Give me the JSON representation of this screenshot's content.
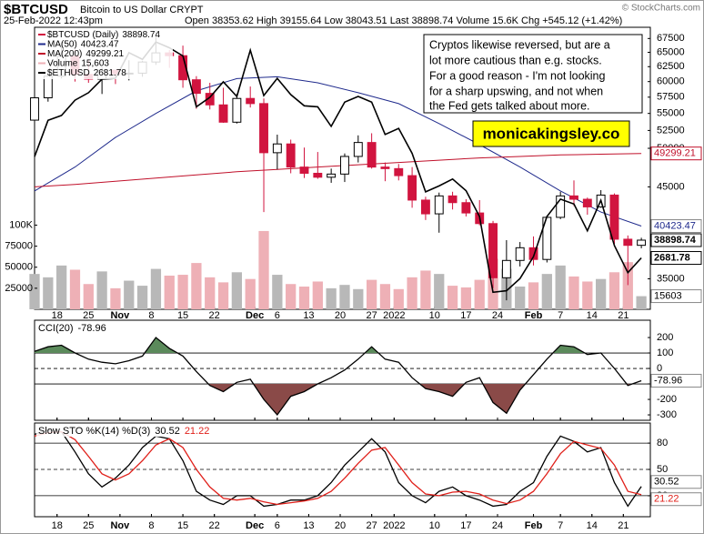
{
  "chart_data": [
    {
      "type": "candlestick",
      "title": "$BTCUSD",
      "subtitle": "Bitcoin to US Dollar  CRYPT",
      "date": "25-Feb-2022 12:43pm",
      "quote": "Open 38353.62  High 39155.64  Low 38043.51  Last 38898.74  Volume 15.6K  Chg +545.12 (+1.42%)",
      "copyright": "© StockCharts.com",
      "name": "$BTCUSD (Daily)",
      "annotation": [
        "Cryptos likewise reversed, but are a",
        "lot more cautious than e.g. stocks.",
        "For a good reason - I'm not looking",
        "for a sharp upswing, and not when",
        "the Fed gets talked about more."
      ],
      "link": "monicakingsley.co",
      "x": [
        0,
        3,
        6,
        9,
        12,
        15,
        18,
        21,
        24,
        27,
        30,
        33,
        36,
        39,
        42,
        45,
        48,
        51,
        54,
        57,
        60,
        63,
        66,
        69,
        72,
        75,
        78,
        81,
        84,
        87,
        90,
        93,
        96,
        99,
        102,
        105,
        108,
        111,
        114,
        117,
        120,
        123,
        126,
        129,
        132,
        135
      ],
      "open": [
        54000,
        57400,
        60900,
        64300,
        61200,
        60400,
        61900,
        61300,
        61400,
        63300,
        64900,
        64400,
        60300,
        58100,
        56300,
        53700,
        57300,
        56500,
        49400,
        50600,
        47500,
        46700,
        46200,
        46600,
        48900,
        50800,
        47500,
        47300,
        46400,
        43400,
        41800,
        43900,
        43100,
        41900,
        40700,
        35100,
        36800,
        38100,
        36900,
        41400,
        43900,
        43500,
        42600,
        44000,
        39000,
        38353.62
      ],
      "high": [
        57800,
        62000,
        66900,
        65500,
        63700,
        62400,
        62000,
        63600,
        63500,
        69000,
        65400,
        66200,
        60900,
        59800,
        59000,
        58000,
        59200,
        57300,
        51900,
        51200,
        50100,
        49500,
        47300,
        49300,
        51800,
        52100,
        48100,
        47900,
        47500,
        43800,
        44300,
        44400,
        43500,
        43400,
        41000,
        38900,
        38700,
        39300,
        41600,
        44400,
        45800,
        43700,
        44600,
        44200,
        39400,
        39155.64
      ],
      "low": [
        53800,
        56800,
        60500,
        60000,
        59800,
        58000,
        59600,
        60200,
        60800,
        62800,
        62300,
        59000,
        55700,
        55600,
        53600,
        53500,
        55900,
        42000,
        47200,
        46700,
        46100,
        46000,
        45500,
        45600,
        48100,
        47300,
        45700,
        45800,
        42500,
        41100,
        39700,
        42300,
        41500,
        40500,
        34100,
        33000,
        36200,
        36300,
        36600,
        41200,
        42700,
        41700,
        42500,
        38500,
        34400,
        38043.51
      ],
      "close": [
        57400,
        60900,
        64300,
        61200,
        60400,
        61900,
        61300,
        61400,
        63300,
        64900,
        64400,
        60300,
        58100,
        56300,
        53700,
        57300,
        56500,
        49400,
        50600,
        47500,
        46700,
        46200,
        46600,
        48900,
        50800,
        47500,
        47300,
        46400,
        43400,
        41800,
        43900,
        43100,
        41900,
        40700,
        35100,
        36800,
        38100,
        36900,
        41400,
        43900,
        43500,
        42600,
        44000,
        39000,
        38350,
        38898.74
      ],
      "up_color": "#000000",
      "down_color": "#d1143f",
      "log_scale": true,
      "ylim": [
        32200,
        69600
      ],
      "yticks": [
        35000,
        45000,
        50000,
        52500,
        55000,
        57500,
        60000,
        62500,
        65000,
        67500
      ],
      "volume": {
        "name": "Volume",
        "value_label": "15,603",
        "up_color": "#b8b8b8",
        "down_color": "#eeb0b6",
        "values": [
          42000,
          38000,
          52000,
          47000,
          30000,
          45000,
          25000,
          34000,
          28000,
          48000,
          40000,
          41000,
          55000,
          38000,
          32000,
          44000,
          36000,
          93000,
          41000,
          30000,
          27000,
          33000,
          25000,
          29000,
          24000,
          35000,
          30000,
          24000,
          38000,
          46000,
          42000,
          28000,
          26000,
          35000,
          60000,
          48000,
          27000,
          32000,
          42000,
          52000,
          39000,
          33000,
          36000,
          44000,
          56000,
          15603
        ],
        "ylim": [
          0,
          335000
        ],
        "yticks": [
          25000,
          50000,
          75000,
          {
            "value": 100000,
            "label": "100K"
          }
        ]
      },
      "overlays": [
        {
          "name": "MA(50)",
          "color": "#1f2a8c",
          "x": [
            0,
            9,
            18,
            27,
            36,
            45,
            54,
            63,
            72,
            81,
            90,
            99,
            108,
            117,
            126,
            135
          ],
          "values": [
            44500,
            47500,
            51500,
            55000,
            58500,
            60500,
            60800,
            59800,
            58200,
            56500,
            53500,
            50500,
            47500,
            44500,
            42000,
            40423.47
          ]
        },
        {
          "name": "MA(200)",
          "color": "#c0102a",
          "x": [
            0,
            9,
            18,
            27,
            36,
            45,
            54,
            63,
            72,
            81,
            90,
            99,
            108,
            117,
            126,
            135
          ],
          "values": [
            45000,
            45300,
            45700,
            46100,
            46500,
            46900,
            47200,
            47500,
            47800,
            48100,
            48400,
            48700,
            48900,
            49100,
            49200,
            49299.21
          ]
        }
      ],
      "compare": {
        "name": "$ETHUSD",
        "color": "#000000",
        "log_scale": true,
        "ylim": [
          2343,
          4917
        ],
        "values": [
          3500,
          3850,
          3900,
          4060,
          4140,
          4290,
          4300,
          4600,
          4520,
          4730,
          4660,
          4560,
          3990,
          4090,
          4260,
          4100,
          4630,
          4110,
          4300,
          4120,
          4000,
          3990,
          3790,
          4040,
          4100,
          4040,
          3710,
          3770,
          3530,
          3190,
          3240,
          3300,
          3200,
          2990,
          2450,
          2460,
          2540,
          2690,
          2990,
          3130,
          3090,
          2880,
          3120,
          2770,
          2580,
          2681.78
        ]
      },
      "xlim": [
        0,
        137
      ],
      "xticks": [
        {
          "value": 5,
          "label": "18"
        },
        {
          "value": 12,
          "label": "25"
        },
        {
          "value": 19,
          "label": "Nov"
        },
        {
          "value": 26,
          "label": "8"
        },
        {
          "value": 33,
          "label": "15"
        },
        {
          "value": 40,
          "label": "22"
        },
        {
          "value": 49,
          "label": "Dec"
        },
        {
          "value": 54,
          "label": "6"
        },
        {
          "value": 61,
          "label": "13"
        },
        {
          "value": 68,
          "label": "20"
        },
        {
          "value": 75,
          "label": "27"
        },
        {
          "value": 80,
          "label": "2022"
        },
        {
          "value": 89,
          "label": "10"
        },
        {
          "value": 96,
          "label": "17"
        },
        {
          "value": 103,
          "label": "24"
        },
        {
          "value": 111,
          "label": "Feb"
        },
        {
          "value": 117,
          "label": "7"
        },
        {
          "value": 124,
          "label": "14"
        },
        {
          "value": 131,
          "label": "21"
        }
      ]
    },
    {
      "type": "line",
      "title": "CCI(20)",
      "series": [
        {
          "color": "#000000",
          "values": [
            110,
            140,
            150,
            100,
            60,
            40,
            30,
            50,
            80,
            200,
            130,
            80,
            -20,
            -110,
            -150,
            -90,
            -70,
            -200,
            -300,
            -180,
            -150,
            -100,
            -60,
            -10,
            60,
            140,
            60,
            40,
            -60,
            -130,
            -150,
            -180,
            -90,
            -60,
            -220,
            -290,
            -140,
            -40,
            60,
            150,
            140,
            90,
            100,
            0,
            -110,
            -78.96
          ]
        }
      ],
      "ylim": [
        -335,
        312
      ],
      "yticks": [
        -300,
        -200,
        -100,
        0,
        100,
        200
      ],
      "levels": [
        100,
        -100
      ],
      "midline": 0,
      "fill_above_color": "#5b8a5b",
      "fill_below_color": "#8a4a48"
    },
    {
      "type": "line",
      "title": "Slow STO %K(14) %D(3)",
      "series": [
        {
          "color": "#000000",
          "values": [
            90,
            95,
            93,
            70,
            45,
            30,
            40,
            55,
            75,
            88,
            85,
            60,
            25,
            15,
            10,
            20,
            20,
            8,
            10,
            15,
            15,
            20,
            35,
            55,
            70,
            85,
            70,
            35,
            20,
            12,
            25,
            30,
            20,
            15,
            8,
            10,
            25,
            35,
            65,
            88,
            82,
            70,
            75,
            35,
            8,
            30.52
          ]
        },
        {
          "color": "#e0201a",
          "values": [
            88,
            92,
            93,
            84,
            65,
            45,
            38,
            45,
            60,
            78,
            85,
            75,
            50,
            30,
            17,
            15,
            17,
            13,
            10,
            12,
            14,
            17,
            25,
            40,
            57,
            72,
            75,
            55,
            35,
            22,
            20,
            24,
            25,
            22,
            15,
            11,
            15,
            25,
            45,
            68,
            82,
            78,
            74,
            55,
            25,
            21.22
          ]
        }
      ],
      "ylim": [
        -4,
        103
      ],
      "yticks": [
        20,
        50,
        80
      ],
      "levels": [
        80,
        20
      ],
      "midline": 50
    }
  ]
}
